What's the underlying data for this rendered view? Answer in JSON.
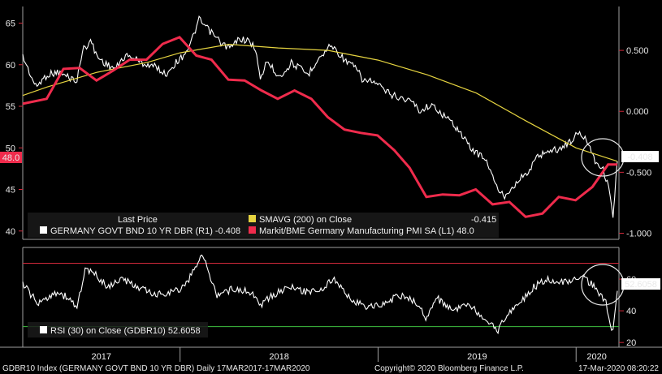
{
  "chart_data": [
    {
      "type": "line",
      "legend_placement": "bottom-left",
      "legend_header": "Last Price",
      "grid": false,
      "x_axis": {
        "start": "2017-03-17",
        "end": "2020-03-17",
        "year_labels": [
          "2017",
          "2018",
          "2019",
          "2020"
        ]
      },
      "y_left": {
        "range": [
          39,
          67
        ],
        "ticks": [
          40,
          45,
          50,
          55,
          60,
          65
        ]
      },
      "y_right": {
        "range": [
          -1.05,
          0.86
        ],
        "ticks": [
          -1.0,
          -0.5,
          0.0,
          0.5
        ],
        "tick_labels": [
          "-1.000",
          "-0.500",
          "0.000",
          "0.500"
        ]
      },
      "series": [
        {
          "name": "GERMANY GOVT BND 10 YR DBR",
          "legend_label": "GERMANY GOVT BND 10 YR DBR  (R1) -0.408",
          "axis": "right",
          "color": "#ffffff",
          "last_value": "-0.408",
          "x": [
            "2017-03-17",
            "2017-04-10",
            "2017-05-01",
            "2017-05-20",
            "2017-06-10",
            "2017-06-25",
            "2017-07-05",
            "2017-07-20",
            "2017-08-01",
            "2017-08-20",
            "2017-09-05",
            "2017-09-20",
            "2017-10-05",
            "2017-10-20",
            "2017-11-05",
            "2017-11-20",
            "2017-12-05",
            "2017-12-20",
            "2018-01-05",
            "2018-01-20",
            "2018-02-05",
            "2018-02-20",
            "2018-03-05",
            "2018-03-20",
            "2018-04-05",
            "2018-04-20",
            "2018-05-05",
            "2018-05-20",
            "2018-05-29",
            "2018-06-10",
            "2018-06-25",
            "2018-07-10",
            "2018-07-25",
            "2018-08-10",
            "2018-08-25",
            "2018-09-10",
            "2018-09-25",
            "2018-10-05",
            "2018-10-20",
            "2018-11-05",
            "2018-11-20",
            "2018-12-05",
            "2018-12-20",
            "2019-01-05",
            "2019-01-20",
            "2019-02-05",
            "2019-02-20",
            "2019-03-05",
            "2019-03-20",
            "2019-04-05",
            "2019-04-20",
            "2019-05-05",
            "2019-05-20",
            "2019-06-05",
            "2019-06-20",
            "2019-07-05",
            "2019-07-20",
            "2019-08-05",
            "2019-08-20",
            "2019-09-05",
            "2019-09-20",
            "2019-10-05",
            "2019-10-20",
            "2019-11-05",
            "2019-11-20",
            "2019-12-05",
            "2019-12-20",
            "2020-01-05",
            "2020-01-20",
            "2020-02-05",
            "2020-02-20",
            "2020-03-01",
            "2020-03-09",
            "2020-03-12",
            "2020-03-17"
          ],
          "values": [
            0.45,
            0.2,
            0.3,
            0.32,
            0.28,
            0.25,
            0.5,
            0.58,
            0.45,
            0.38,
            0.35,
            0.45,
            0.45,
            0.4,
            0.38,
            0.36,
            0.3,
            0.38,
            0.45,
            0.55,
            0.75,
            0.68,
            0.62,
            0.55,
            0.52,
            0.6,
            0.58,
            0.52,
            0.25,
            0.42,
            0.32,
            0.3,
            0.4,
            0.35,
            0.3,
            0.42,
            0.48,
            0.55,
            0.48,
            0.4,
            0.36,
            0.25,
            0.25,
            0.2,
            0.15,
            0.12,
            0.1,
            0.08,
            0.0,
            0.05,
            0.02,
            -0.05,
            -0.1,
            -0.2,
            -0.3,
            -0.35,
            -0.4,
            -0.6,
            -0.7,
            -0.62,
            -0.55,
            -0.5,
            -0.38,
            -0.33,
            -0.32,
            -0.3,
            -0.25,
            -0.18,
            -0.22,
            -0.4,
            -0.48,
            -0.62,
            -0.85,
            -0.7,
            -0.41
          ]
        },
        {
          "name": "SMAVG (200) on Close",
          "legend_label": "SMAVG (200)  on Close",
          "axis": "right",
          "color": "#e6d440",
          "last_value": "-0.415",
          "x": [
            "2017-03-17",
            "2017-05-01",
            "2017-08-01",
            "2017-11-01",
            "2018-01-01",
            "2018-04-01",
            "2018-07-01",
            "2018-10-01",
            "2019-01-01",
            "2019-04-01",
            "2019-07-01",
            "2019-10-01",
            "2020-01-01",
            "2020-03-17"
          ],
          "values": [
            0.13,
            0.2,
            0.32,
            0.4,
            0.48,
            0.55,
            0.52,
            0.5,
            0.42,
            0.3,
            0.15,
            -0.08,
            -0.3,
            -0.41
          ]
        },
        {
          "name": "Markit/BME Germany Manufacturing PMI SA",
          "legend_label": "Markit/BME Germany Manufacturing PMI SA  (L1) 48.0",
          "axis": "left",
          "color": "#ef2b4c",
          "last_value": "48.0",
          "x": [
            "2017-03-17",
            "2017-04-30",
            "2017-05-31",
            "2017-06-30",
            "2017-07-31",
            "2017-08-31",
            "2017-09-30",
            "2017-10-31",
            "2017-11-30",
            "2017-12-31",
            "2018-01-31",
            "2018-02-28",
            "2018-03-31",
            "2018-04-30",
            "2018-05-31",
            "2018-06-30",
            "2018-07-31",
            "2018-08-31",
            "2018-09-30",
            "2018-10-31",
            "2018-11-30",
            "2018-12-31",
            "2019-01-31",
            "2019-02-28",
            "2019-03-31",
            "2019-04-30",
            "2019-05-31",
            "2019-06-30",
            "2019-07-31",
            "2019-08-31",
            "2019-09-30",
            "2019-10-31",
            "2019-11-30",
            "2019-12-31",
            "2020-01-31",
            "2020-02-29",
            "2020-03-17"
          ],
          "values": [
            55.3,
            55.9,
            59.5,
            59.6,
            58.1,
            59.3,
            60.6,
            60.6,
            62.5,
            63.3,
            61.1,
            60.6,
            58.2,
            58.1,
            56.9,
            55.9,
            56.9,
            55.9,
            53.7,
            52.2,
            51.8,
            51.5,
            49.7,
            47.6,
            44.1,
            44.4,
            44.3,
            45.0,
            43.2,
            43.5,
            41.7,
            42.1,
            44.1,
            43.7,
            45.3,
            48.0,
            48.0
          ]
        }
      ]
    },
    {
      "type": "line",
      "legend_placement": "bottom-left",
      "grid": false,
      "x_axis": {
        "start": "2017-03-17",
        "end": "2020-03-17",
        "year_labels": [
          "2017",
          "2018",
          "2019",
          "2020"
        ]
      },
      "y_right": {
        "range": [
          17,
          80
        ],
        "ticks": [
          20,
          40,
          60
        ],
        "tick_labels": [
          "20",
          "40",
          "60"
        ]
      },
      "reference_lines": [
        {
          "value": 70,
          "color": "#d0283a"
        },
        {
          "value": 30,
          "color": "#3fc040"
        }
      ],
      "series": [
        {
          "name": "RSI (30) on Close (GDBR10)",
          "legend_label": "RSI (30)  on Close (GDBR10) 52.6058",
          "axis": "right",
          "color": "#ffffff",
          "last_value": "52.6058",
          "x": [
            "2017-03-17",
            "2017-04-15",
            "2017-05-15",
            "2017-06-10",
            "2017-06-25",
            "2017-07-10",
            "2017-08-01",
            "2017-08-20",
            "2017-09-15",
            "2017-10-15",
            "2017-11-15",
            "2017-12-15",
            "2018-01-10",
            "2018-02-10",
            "2018-03-10",
            "2018-04-10",
            "2018-05-10",
            "2018-06-01",
            "2018-06-20",
            "2018-07-20",
            "2018-08-20",
            "2018-09-20",
            "2018-10-10",
            "2018-11-10",
            "2018-12-10",
            "2019-01-10",
            "2019-02-10",
            "2019-03-10",
            "2019-03-30",
            "2019-04-20",
            "2019-05-20",
            "2019-06-20",
            "2019-07-10",
            "2019-08-10",
            "2019-09-01",
            "2019-09-20",
            "2019-10-15",
            "2019-11-10",
            "2019-12-10",
            "2020-01-10",
            "2020-02-05",
            "2020-02-25",
            "2020-03-09",
            "2020-03-17"
          ],
          "values": [
            57,
            44,
            52,
            48,
            42,
            66,
            62,
            55,
            60,
            55,
            50,
            52,
            55,
            76,
            50,
            54,
            52,
            44,
            50,
            55,
            52,
            54,
            60,
            48,
            42,
            44,
            50,
            46,
            36,
            48,
            40,
            44,
            35,
            28,
            40,
            45,
            55,
            60,
            58,
            62,
            55,
            45,
            26,
            52.6
          ]
        }
      ]
    }
  ],
  "footer": {
    "index_label": "GDBR10 Index (GERMANY GOVT BND 10 YR DBR)  Daily 17MAR2017-17MAR2020",
    "copyright": "Copyright© 2020 Bloomberg Finance L.P.",
    "timestamp": "17-Mar-2020 08:20:22"
  },
  "colors": {
    "background": "#000000",
    "bund": "#ffffff",
    "smavg": "#e6d440",
    "pmi": "#ef2b4c",
    "rsi": "#ffffff",
    "overbought": "#d0283a",
    "oversold": "#3fc040",
    "axis_right": "#d0283a",
    "axis_left": "#d0283a"
  }
}
